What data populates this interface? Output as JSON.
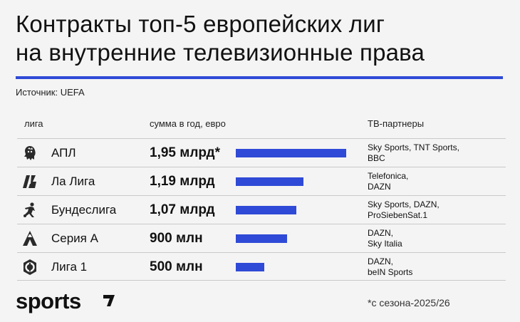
{
  "title_lines": [
    "Контракты топ-5 европейских лиг",
    "на внутренние телевизионные права"
  ],
  "source": "Источник: UEFA",
  "headers": {
    "league": "лига",
    "amount": "сумма в год, евро",
    "partners": "ТВ-партнеры"
  },
  "colors": {
    "accent": "#2f4ad6",
    "text": "#111111",
    "background": "#f4f4f4"
  },
  "chart_data": {
    "type": "bar",
    "categories": [
      "АПЛ",
      "Ла Лига",
      "Бундеслига",
      "Серия А",
      "Лига 1"
    ],
    "values": [
      1.95,
      1.19,
      1.07,
      0.9,
      0.5
    ],
    "unit": "млрд евро",
    "value_labels": [
      "1,95 млрд*",
      "1,19 млрд",
      "1,07 млрд",
      "900 млн",
      "500 млн"
    ],
    "partners": [
      [
        "Sky Sports, TNT Sports,",
        "BBC"
      ],
      [
        "Telefonica,",
        "DAZN"
      ],
      [
        "Sky Sports, DAZN,",
        "ProSiebenSat.1"
      ],
      [
        "DAZN,",
        "Sky Italia"
      ],
      [
        "DAZN,",
        "beIN Sports"
      ]
    ],
    "logos": [
      "premier-league-lion-icon",
      "laliga-icon",
      "bundesliga-player-icon",
      "serie-a-icon",
      "ligue-1-icon"
    ],
    "xlim": [
      0,
      1.95
    ]
  },
  "footer": {
    "brand": "sports",
    "footnote": "*с сезона-2025/26"
  }
}
